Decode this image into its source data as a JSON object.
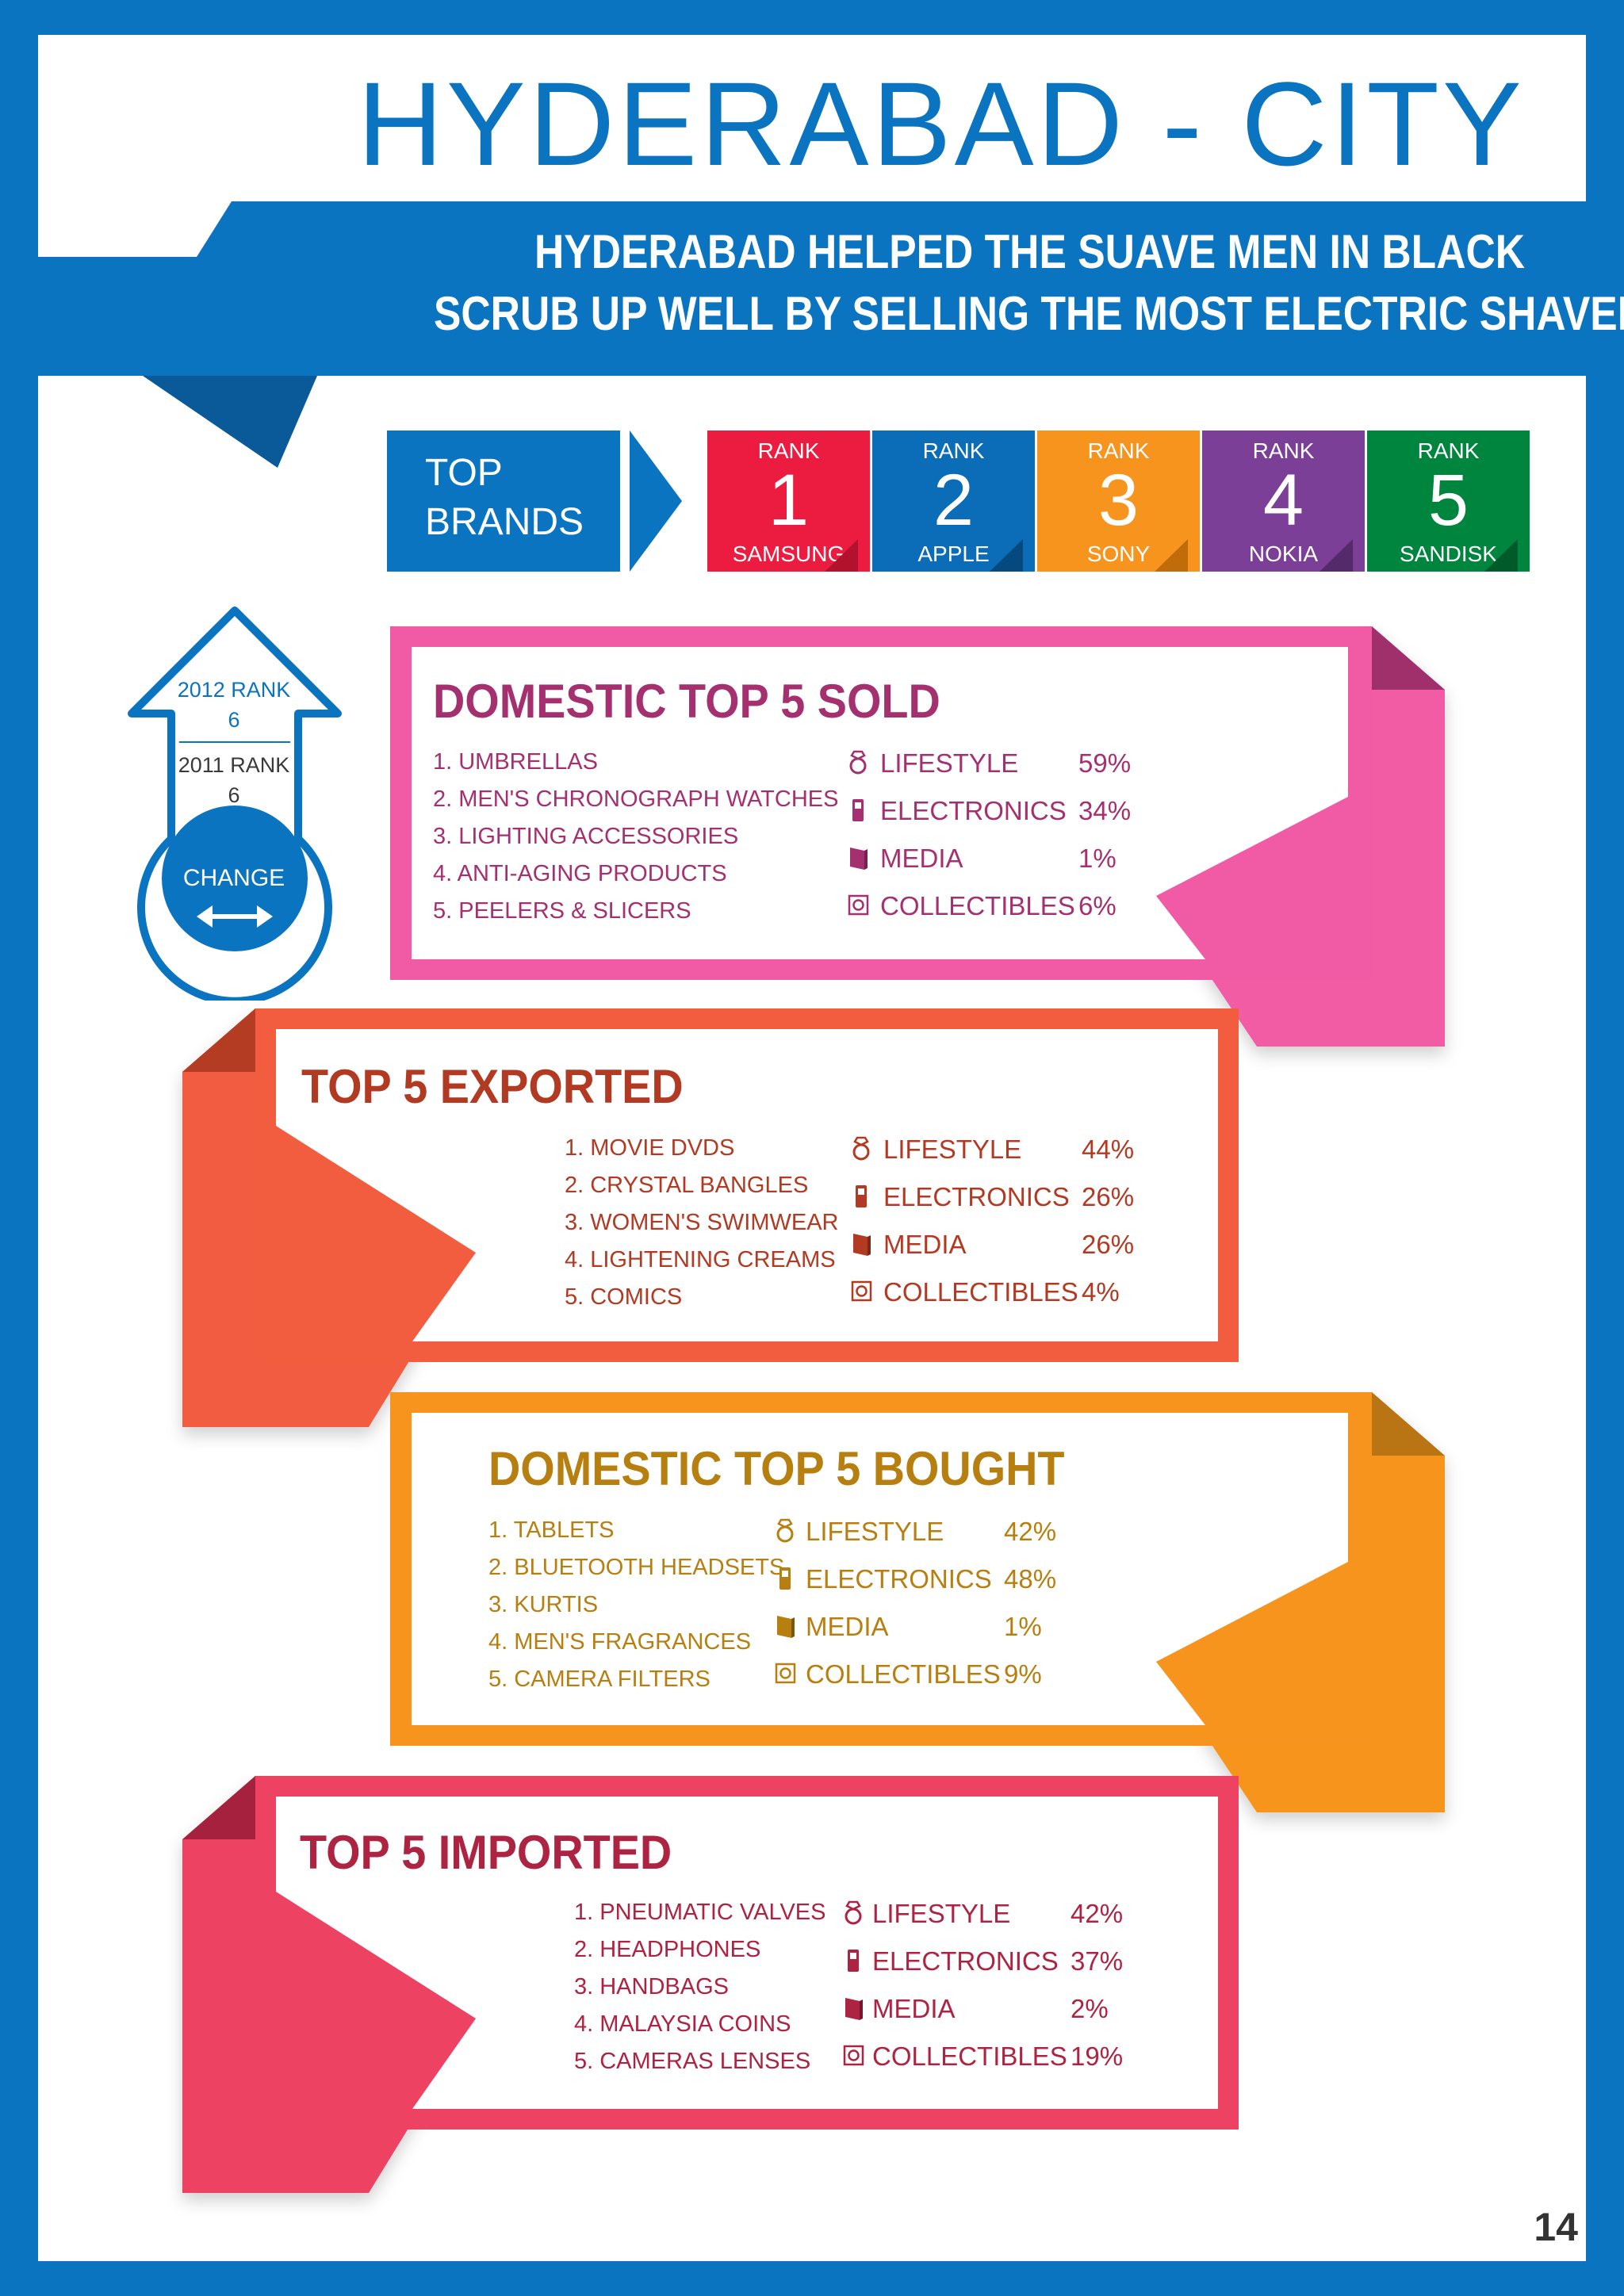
{
  "page_title": "HYDERABAD - CITY",
  "headline": [
    "HYDERABAD HELPED THE SUAVE MEN IN BLACK",
    "SCRUB UP WELL BY SELLING THE MOST ELECTRIC SHAVERS"
  ],
  "top_brands": {
    "label_line1": "TOP",
    "label_line2": "BRANDS",
    "rank_label": "RANK",
    "brands": [
      {
        "rank": "1",
        "name": "SAMSUNG",
        "color": "#ec1c40"
      },
      {
        "rank": "2",
        "name": "APPLE",
        "color": "#0b6db7"
      },
      {
        "rank": "3",
        "name": "SONY",
        "color": "#f7941e"
      },
      {
        "rank": "4",
        "name": "NOKIA",
        "color": "#7c3f98"
      },
      {
        "rank": "5",
        "name": "SANDISK",
        "color": "#00853f"
      }
    ]
  },
  "rank_badge": {
    "rank_2012_label": "2012 RANK",
    "rank_2012_value": "6",
    "rank_2011_label": "2011 RANK",
    "rank_2011_value": "6",
    "change_label": "CHANGE"
  },
  "icons": [
    "lifestyle-ring-icon",
    "electronics-phone-icon",
    "media-book-icon",
    "collectibles-coin-icon"
  ],
  "sections": [
    {
      "title": "DOMESTIC TOP 5 SOLD",
      "color": "#f15ba5",
      "text_color": "#a5306f",
      "items": [
        "1. UMBRELLAS",
        "2. MEN'S CHRONOGRAPH WATCHES",
        "3. LIGHTING ACCESSORIES",
        "4. ANTI-AGING PRODUCTS",
        "5. PEELERS & SLICERS"
      ],
      "categories": [
        {
          "name": "LIFESTYLE",
          "pct": "59%"
        },
        {
          "name": "ELECTRONICS",
          "pct": "34%"
        },
        {
          "name": "MEDIA",
          "pct": "1%"
        },
        {
          "name": "COLLECTIBLES",
          "pct": "6%"
        }
      ]
    },
    {
      "title": "TOP 5 EXPORTED",
      "color": "#f25c3f",
      "text_color": "#b23a22",
      "items": [
        "1. MOVIE DVDS",
        "2. CRYSTAL BANGLES",
        "3. WOMEN'S SWIMWEAR",
        "4. LIGHTENING CREAMS",
        "5. COMICS"
      ],
      "categories": [
        {
          "name": "LIFESTYLE",
          "pct": "44%"
        },
        {
          "name": "ELECTRONICS",
          "pct": "26%"
        },
        {
          "name": "MEDIA",
          "pct": "26%"
        },
        {
          "name": "COLLECTIBLES",
          "pct": "4%"
        }
      ]
    },
    {
      "title": "DOMESTIC TOP 5 BOUGHT",
      "color": "#f7941e",
      "text_color": "#b77f10",
      "items": [
        "1. TABLETS",
        "2. BLUETOOTH HEADSETS",
        "3. KURTIS",
        "4. MEN'S FRAGRANCES",
        "5. CAMERA FILTERS"
      ],
      "categories": [
        {
          "name": "LIFESTYLE",
          "pct": "42%"
        },
        {
          "name": "ELECTRONICS",
          "pct": "48%"
        },
        {
          "name": "MEDIA",
          "pct": "1%"
        },
        {
          "name": "COLLECTIBLES",
          "pct": "9%"
        }
      ]
    },
    {
      "title": "TOP 5 IMPORTED",
      "color": "#ee4262",
      "text_color": "#ad2342",
      "items": [
        "1. PNEUMATIC VALVES",
        "2. HEADPHONES",
        "3. HANDBAGS",
        "4. MALAYSIA COINS",
        "5. CAMERAS LENSES"
      ],
      "categories": [
        {
          "name": "LIFESTYLE",
          "pct": "42%"
        },
        {
          "name": "ELECTRONICS",
          "pct": "37%"
        },
        {
          "name": "MEDIA",
          "pct": "2%"
        },
        {
          "name": "COLLECTIBLES",
          "pct": "19%"
        }
      ]
    }
  ],
  "page_number": "14"
}
